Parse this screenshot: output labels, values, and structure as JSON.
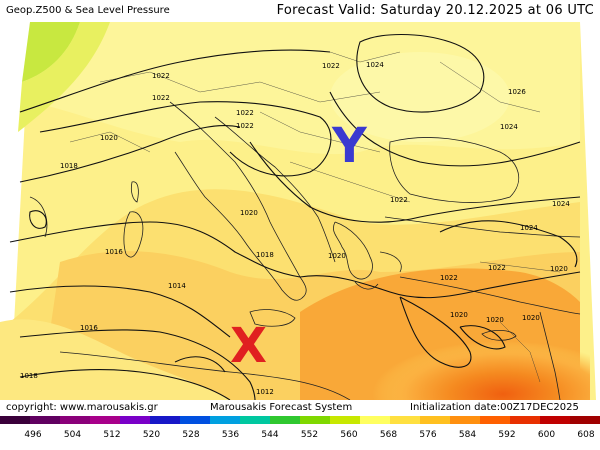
{
  "header": {
    "title": "Geop.Z500 & Sea Level Pressure",
    "forecast_valid": "Forecast Valid:  Saturday 20.12.2025 at 06 UTC"
  },
  "footer": {
    "copyright": "copyright: www.marousakis.gr",
    "system": "Marousakis Forecast System",
    "initialization": "Initialization date:00Z17DEC2025"
  },
  "markers": {
    "y_label": "Y",
    "x_label": "X",
    "y_color": "#3a3ad0",
    "x_color": "#e02020"
  },
  "isobar_labels": [
    "1022",
    "1022",
    "1024",
    "1026",
    "1024",
    "1022",
    "1022",
    "1020",
    "1018",
    "1020",
    "1022",
    "1024",
    "1024",
    "1022",
    "1020",
    "1018",
    "1016",
    "1014",
    "1020",
    "1022",
    "1020",
    "1020",
    "1020",
    "1016",
    "1018",
    "1012",
    "1022"
  ],
  "legend": {
    "labels": [
      "496",
      "504",
      "512",
      "520",
      "528",
      "536",
      "544",
      "552",
      "560",
      "568",
      "576",
      "584",
      "592",
      "600",
      "608"
    ],
    "colors": [
      "#3a003a",
      "#600060",
      "#8a007a",
      "#a8008a",
      "#7a00c8",
      "#1818c8",
      "#0050e0",
      "#00a0e0",
      "#00c8a0",
      "#30c830",
      "#80d800",
      "#c8e800",
      "#ffff60",
      "#ffe040",
      "#ffc020",
      "#ff9010",
      "#ff6000",
      "#e83000",
      "#c00000",
      "#a00000"
    ]
  }
}
